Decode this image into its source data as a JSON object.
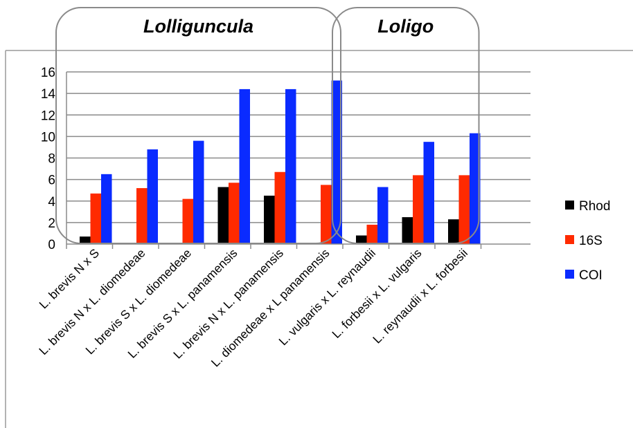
{
  "chart_data": {
    "type": "bar",
    "categories": [
      "L. brevis N x S",
      "L. brevis N x L. diomedeae",
      "L. brevis S x L. diomedeae",
      "L. brevis S x L. panamensis",
      "L. brevis N x L. panamensis",
      "L. diomedeae x L panamensis",
      "L. vulgaris x L. reynaudii",
      "L. forbesii x L. vulgaris",
      "L. reynaudii x L. forbesii"
    ],
    "series": [
      {
        "name": "Rhod",
        "color": "#000000",
        "values": [
          0.7,
          null,
          null,
          5.3,
          4.5,
          null,
          0.8,
          2.5,
          2.3
        ]
      },
      {
        "name": "16S",
        "color": "#ff2a00",
        "values": [
          4.7,
          5.2,
          4.2,
          5.7,
          6.7,
          5.5,
          1.8,
          6.4,
          6.4
        ]
      },
      {
        "name": "COI",
        "color": "#0a2bff",
        "values": [
          6.5,
          8.8,
          9.6,
          14.4,
          14.4,
          15.2,
          5.3,
          9.5,
          10.3
        ]
      }
    ],
    "ylim": [
      0,
      16
    ],
    "yticks": [
      "0",
      "2",
      "4",
      "6",
      "8",
      "10",
      "12",
      "14",
      "16"
    ],
    "grid": true,
    "legend_position": "right",
    "groups": [
      {
        "label": "Lolliguncula",
        "first": 0,
        "last": 5
      },
      {
        "label": "Loligo",
        "first": 6,
        "last": 8
      }
    ]
  }
}
